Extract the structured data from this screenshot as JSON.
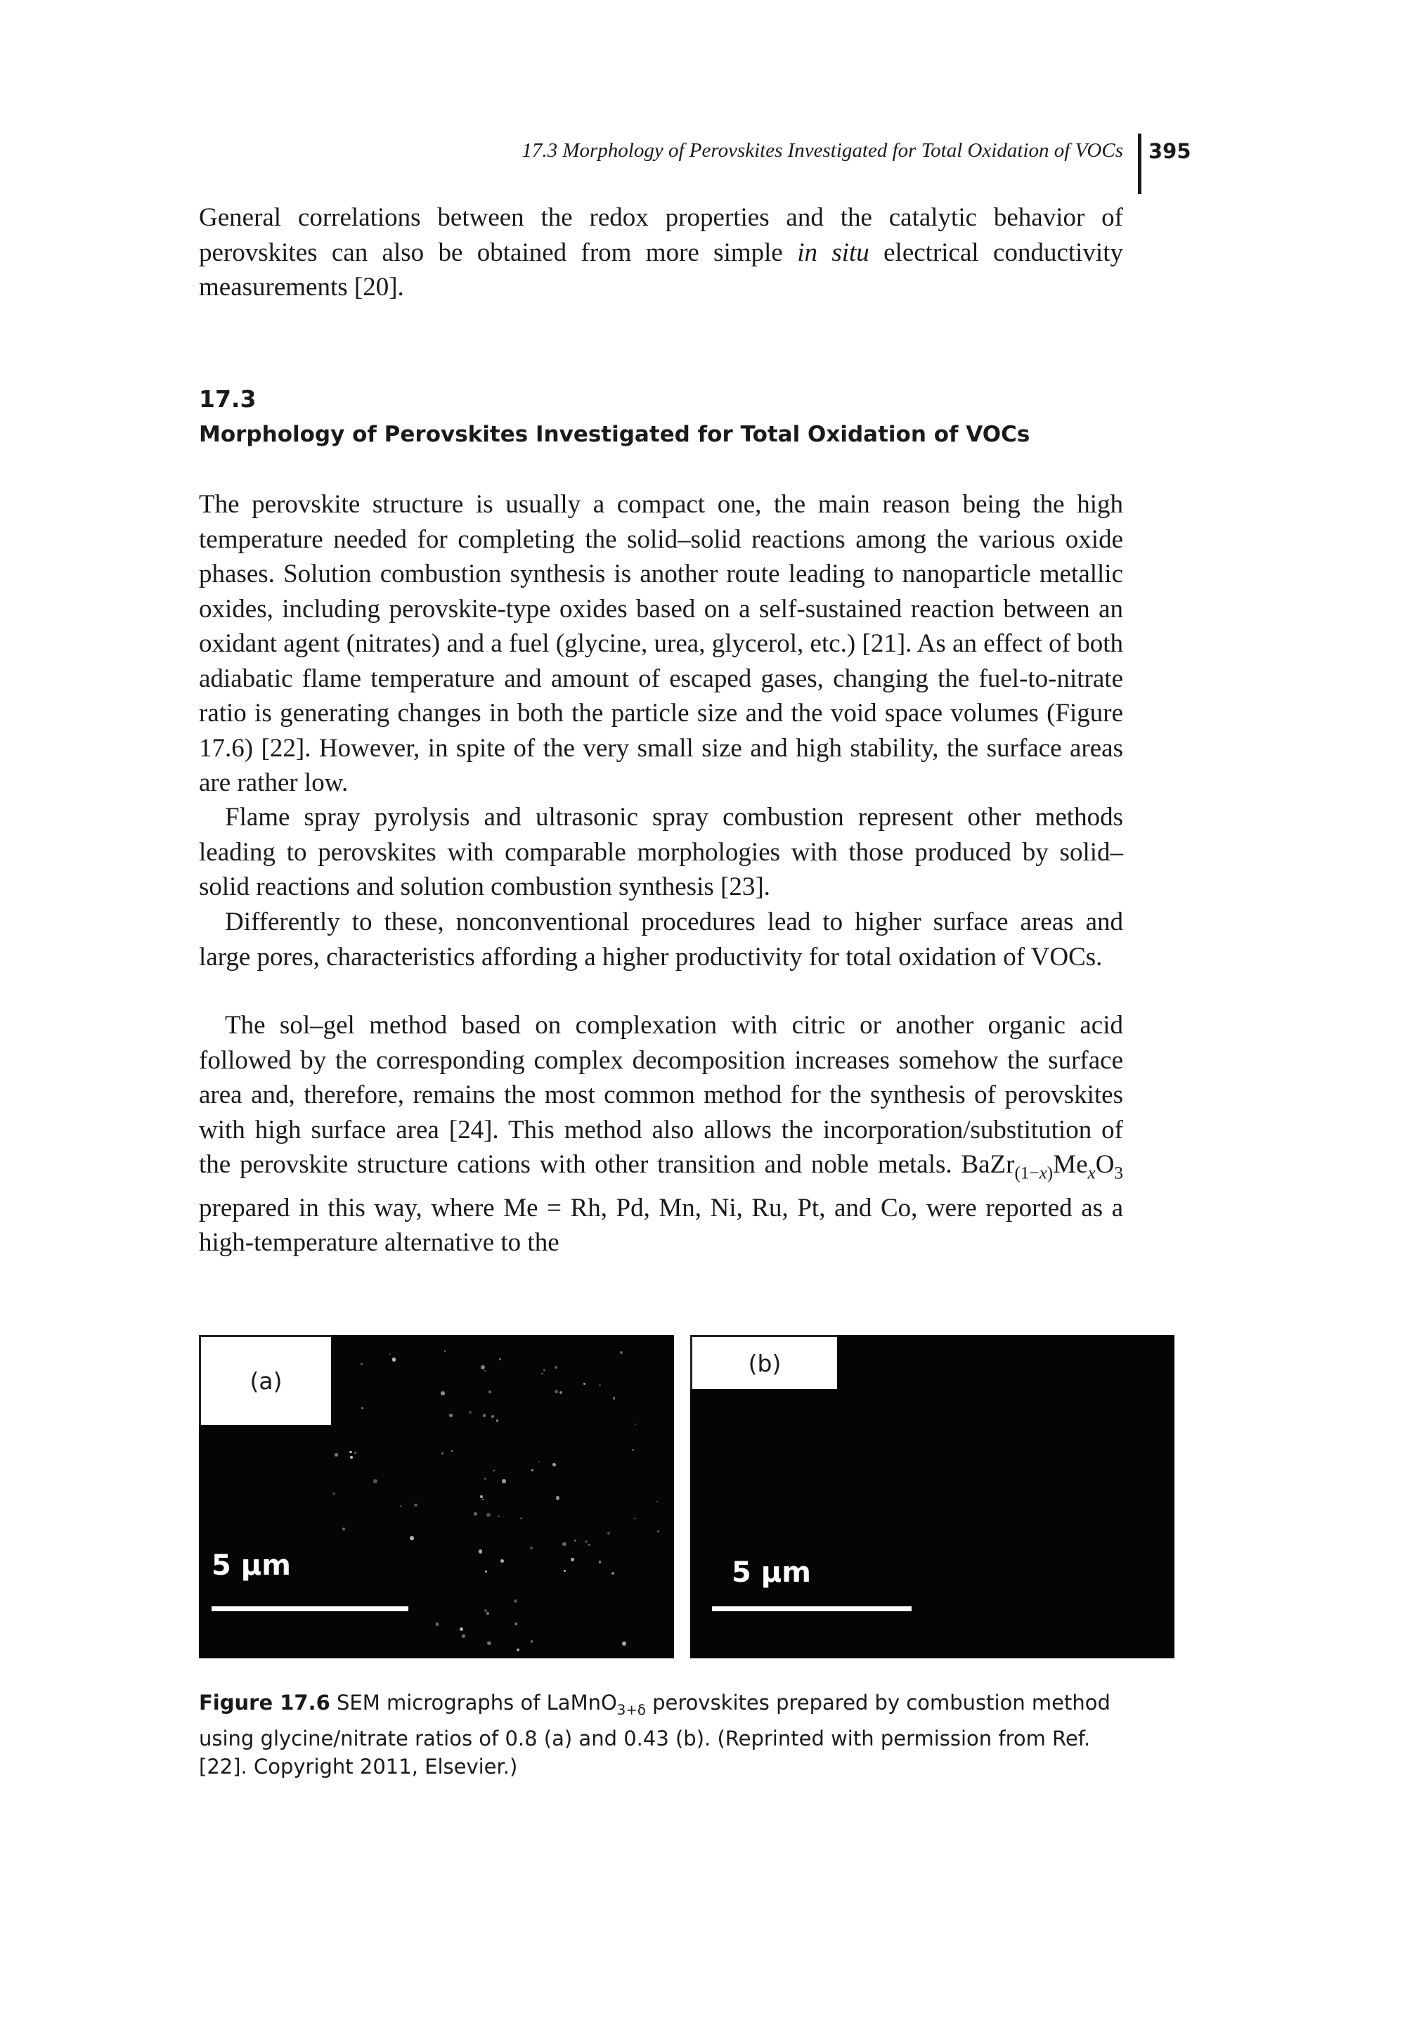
{
  "header": {
    "running_title": "17.3 Morphology of Perovskites Investigated for Total Oxidation of VOCs",
    "page_number": "395"
  },
  "paragraphs": [
    [
      "General correlations between the redox properties and the catalytic behavior of perovskites can also be obtained from more simple ",
      "in situ",
      " electrical conductivity measurements [20]."
    ],
    [
      "The perovskite structure is usually a compact one, the main reason being the high temperature needed for completing the solid–solid reactions among the various oxide phases. Solution combustion synthesis is another route leading to nanoparticle metallic oxides, including perovskite-type oxides based on a self-sustained reaction between an oxidant agent (nitrates) and a fuel (glycine, urea, glycerol, etc.) [21]. As an effect of both adiabatic flame temperature and amount of escaped gases, changing the fuel-to-nitrate ratio is generating changes in both the particle size and the void space volumes (Figure 17.6) [22]. However, in spite of the very small size and high stability, the surface areas are rather low."
    ],
    [
      "Flame spray pyrolysis and ultrasonic spray combustion represent other methods leading to perovskites with comparable morphologies with those produced by solid–solid reactions and solution combustion synthesis [23]."
    ],
    [
      "Differently to these, nonconventional procedures lead to higher surface areas and large pores, characteristics affording a higher productivity for total oxidation of VOCs."
    ],
    [
      "The sol–gel method based on complexation with citric or another organic acid followed by the corresponding complex decomposition increases somehow the surface area and, therefore, remains the most common method for the synthesis of perovskites with high surface area [24]. This method also allows the incorporation/substitution of the perovskite structure cations with other transition and noble metals. BaZr",
      "(1−",
      "x",
      ")",
      "Me",
      "x",
      "O",
      "3",
      " prepared in this way, where Me = Rh, Pd, Mn, Ni, Ru, Pt, and Co, were reported as a high-temperature alternative to the"
    ]
  ],
  "section": {
    "number": "17.3",
    "title": "Morphology of Perovskites Investigated for Total Oxidation of VOCs"
  },
  "figure": {
    "panels": [
      {
        "label": "(a)",
        "scale_bar": "5 µm"
      },
      {
        "label": "(b)",
        "scale_bar": "5 µm"
      }
    ],
    "caption": [
      "Figure 17.6",
      " SEM micrographs of LaMnO",
      "3+δ",
      " perovskites prepared by combustion method using glycine/nitrate ratios of 0.8 (a) and 0.43 (b). (Reprinted with permission from Ref. [22]. Copyright 2011, Elsevier.)"
    ]
  }
}
